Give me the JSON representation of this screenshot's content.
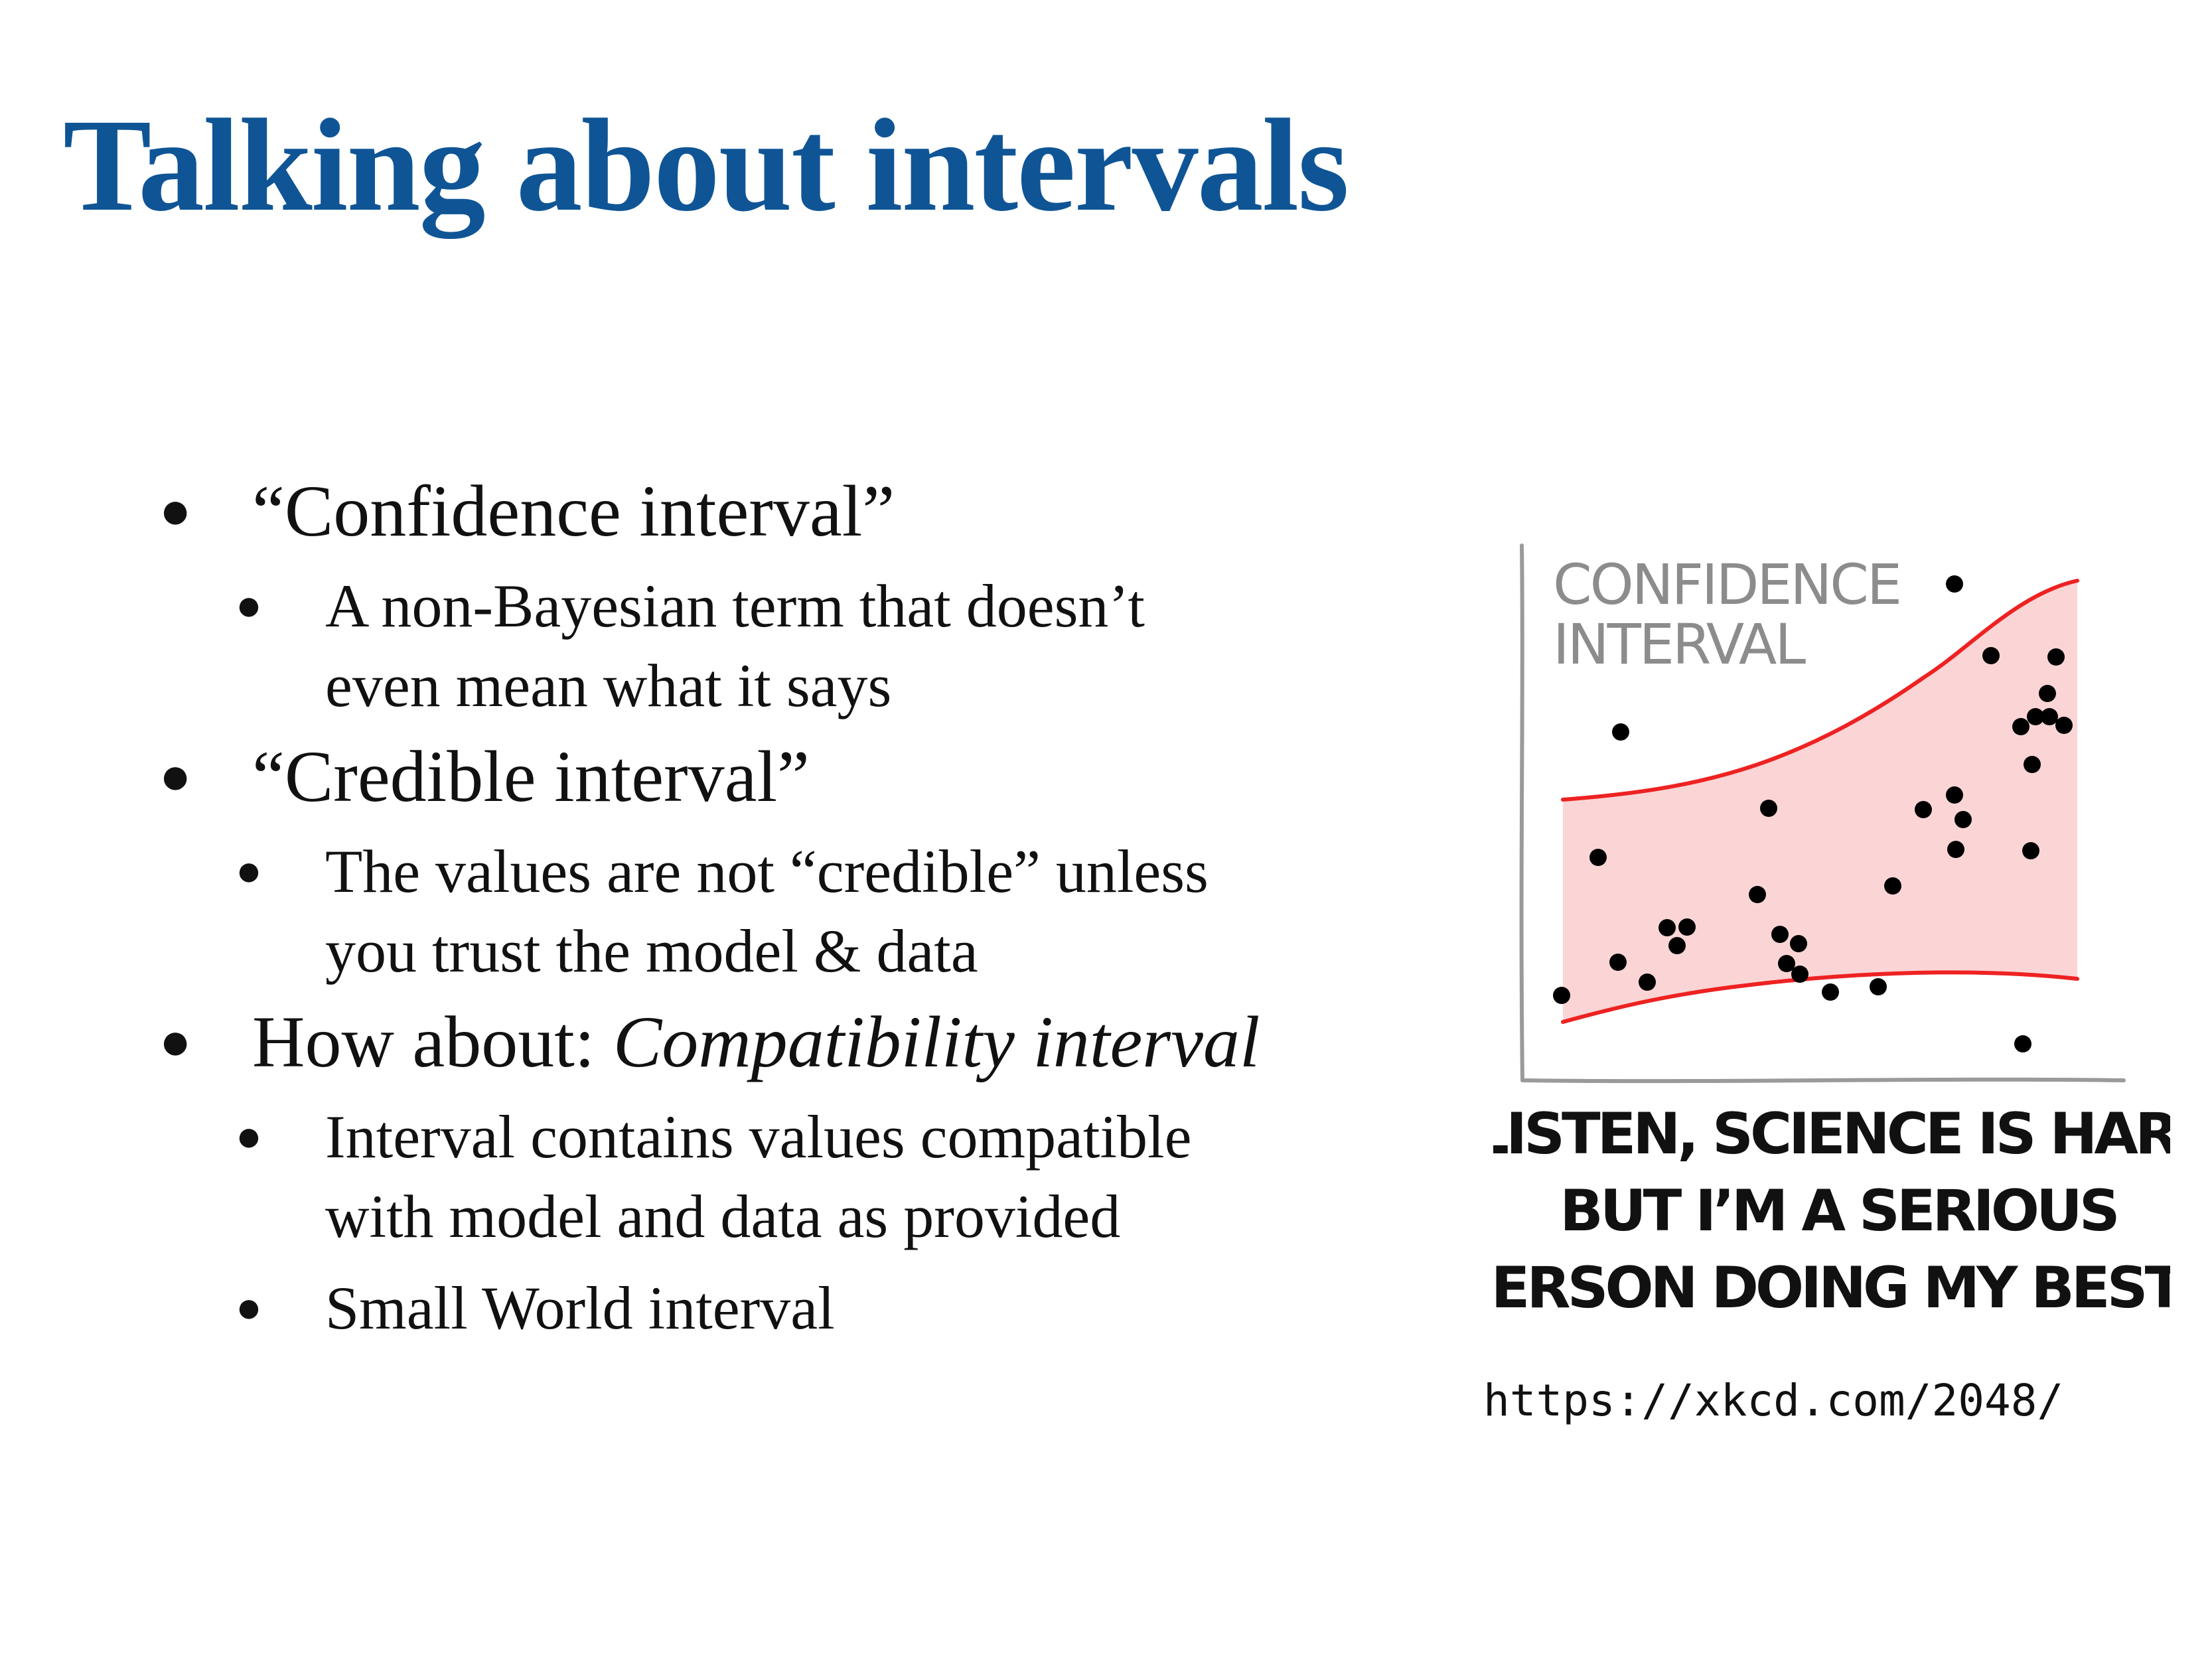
{
  "slide": {
    "title": "Talking about intervals",
    "bullets": [
      {
        "text": "“Confidence interval”",
        "sub": [
          "A non-Bayesian term that doesn’t",
          "even mean what it says"
        ]
      },
      {
        "text": "“Credible interval”",
        "sub": [
          "The values are not “credible” unless",
          "you trust the model & data"
        ]
      },
      {
        "text_prefix": "How about: ",
        "text_emphasis": "Compatibility interval",
        "sub": [
          "Interval contains values compatible",
          "with model and data as provided"
        ],
        "sub2": [
          "Small World interval"
        ]
      }
    ]
  },
  "comic": {
    "label_lines": [
      "CONFIDENCE",
      "INTERVAL"
    ],
    "caption_lines": [
      "“LISTEN, SCIENCE IS HARD.",
      "BUT I’M A SERIOUS",
      "PERSON DOING MY BEST.”"
    ],
    "source_url": "https://xkcd.com/2048/",
    "colors": {
      "band_fill": "#fbd5d5",
      "band_edge": "#ee2222",
      "axis": "#9a9a9a",
      "point": "#000000"
    }
  }
}
